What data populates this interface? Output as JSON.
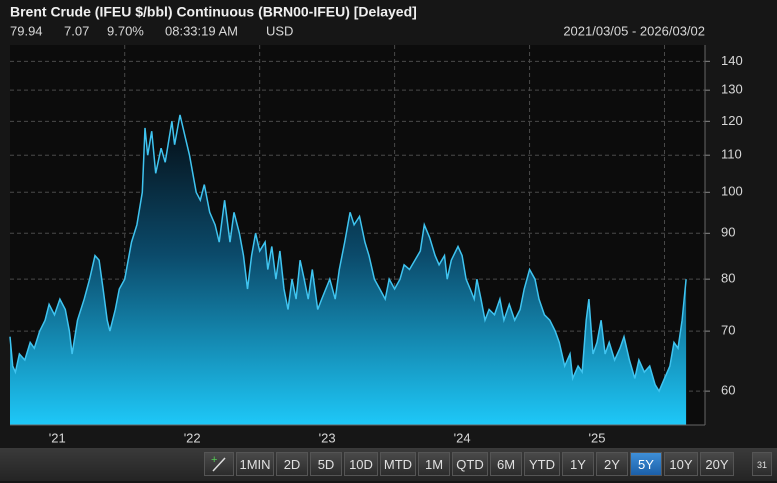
{
  "chart_data": {
    "type": "area",
    "title": "Brent Crude (IFEU $/bbl) Continuous (BRN00-IFEU) [Delayed]",
    "color": "#3fc4f0",
    "log_scale": true,
    "grid": true,
    "ylim": [
      55,
      146
    ],
    "yticks": [
      60,
      70,
      80,
      90,
      100,
      110,
      120,
      130,
      140
    ],
    "xlim": [
      2021.15,
      2026.3
    ],
    "xticks": [
      {
        "value": 2021.5,
        "label": "'21"
      },
      {
        "value": 2022.5,
        "label": "'22"
      },
      {
        "value": 2023.5,
        "label": "'23"
      },
      {
        "value": 2024.5,
        "label": "'24"
      },
      {
        "value": 2025.5,
        "label": "'25"
      }
    ],
    "xgrid": [
      2022,
      2023,
      2024,
      2025,
      2026
    ],
    "x": [
      2021.15,
      2021.17,
      2021.19,
      2021.22,
      2021.26,
      2021.3,
      2021.33,
      2021.37,
      2021.41,
      2021.44,
      2021.48,
      2021.52,
      2021.56,
      2021.59,
      2021.61,
      2021.65,
      2021.7,
      2021.74,
      2021.78,
      2021.81,
      2021.84,
      2021.87,
      2021.89,
      2021.93,
      2021.96,
      2022.0,
      2022.05,
      2022.09,
      2022.13,
      2022.15,
      2022.17,
      2022.2,
      2022.23,
      2022.27,
      2022.3,
      2022.35,
      2022.37,
      2022.41,
      2022.45,
      2022.48,
      2022.53,
      2022.56,
      2022.59,
      2022.63,
      2022.67,
      2022.7,
      2022.74,
      2022.78,
      2022.81,
      2022.85,
      2022.88,
      2022.91,
      2022.94,
      2022.97,
      2023.0,
      2023.04,
      2023.06,
      2023.09,
      2023.12,
      2023.15,
      2023.18,
      2023.21,
      2023.24,
      2023.27,
      2023.3,
      2023.33,
      2023.36,
      2023.39,
      2023.43,
      2023.46,
      2023.49,
      2023.52,
      2023.56,
      2023.59,
      2023.63,
      2023.67,
      2023.7,
      2023.74,
      2023.78,
      2023.81,
      2023.85,
      2023.89,
      2023.93,
      2023.96,
      2024.0,
      2024.04,
      2024.07,
      2024.11,
      2024.15,
      2024.19,
      2024.22,
      2024.26,
      2024.3,
      2024.33,
      2024.37,
      2024.39,
      2024.42,
      2024.47,
      2024.5,
      2024.53,
      2024.56,
      2024.59,
      2024.61,
      2024.64,
      2024.67,
      2024.7,
      2024.74,
      2024.78,
      2024.81,
      2024.85,
      2024.89,
      2024.93,
      2024.96,
      2025.0,
      2025.04,
      2025.07,
      2025.11,
      2025.15,
      2025.19,
      2025.22,
      2025.26,
      2025.3,
      2025.32,
      2025.36,
      2025.39,
      2025.42,
      2025.44,
      2025.47,
      2025.5,
      2025.53,
      2025.56,
      2025.59,
      2025.63,
      2025.67,
      2025.7,
      2025.74,
      2025.78,
      2025.81,
      2025.85,
      2025.89,
      2025.93,
      2025.96,
      2026.0,
      2026.04,
      2026.07,
      2026.1,
      2026.13,
      2026.16
    ],
    "values": [
      69,
      64,
      63,
      66,
      65,
      68,
      67,
      70,
      72,
      75,
      73,
      76,
      74,
      70,
      66,
      72,
      76,
      80,
      85,
      84,
      78,
      72,
      70,
      74,
      78,
      80,
      88,
      92,
      100,
      118,
      110,
      117,
      105,
      112,
      108,
      120,
      113,
      122,
      115,
      110,
      100,
      98,
      102,
      95,
      92,
      88,
      98,
      88,
      95,
      90,
      85,
      78,
      85,
      90,
      86,
      88,
      82,
      87,
      80,
      86,
      78,
      74,
      80,
      76,
      84,
      80,
      76,
      82,
      74,
      76,
      78,
      80,
      76,
      82,
      88,
      95,
      92,
      94,
      88,
      85,
      80,
      78,
      76,
      80,
      78,
      80,
      83,
      82,
      84,
      86,
      92,
      89,
      85,
      83,
      85,
      80,
      84,
      87,
      85,
      80,
      78,
      76,
      80,
      76,
      72,
      74,
      73,
      76,
      72,
      75,
      72,
      74,
      78,
      82,
      80,
      76,
      73,
      72,
      70,
      68,
      64,
      66,
      62,
      64,
      63,
      72,
      76,
      66,
      68,
      72,
      66,
      68,
      65,
      67,
      69,
      65,
      62,
      65,
      63,
      64,
      61,
      60,
      62,
      64,
      68,
      67,
      72,
      80
    ]
  },
  "quote": [
    "79.94",
    "7.07",
    "9.70%",
    "08:33:19 AM",
    "USD"
  ],
  "date_range": "2021/03/05 - 2026/03/02",
  "toolbar": {
    "buttons": [
      "1MIN",
      "2D",
      "5D",
      "10D",
      "MTD",
      "1M",
      "QTD",
      "6M",
      "YTD",
      "1Y",
      "2Y",
      "5Y",
      "10Y",
      "20Y"
    ],
    "active": "5Y",
    "calendar": "31"
  }
}
